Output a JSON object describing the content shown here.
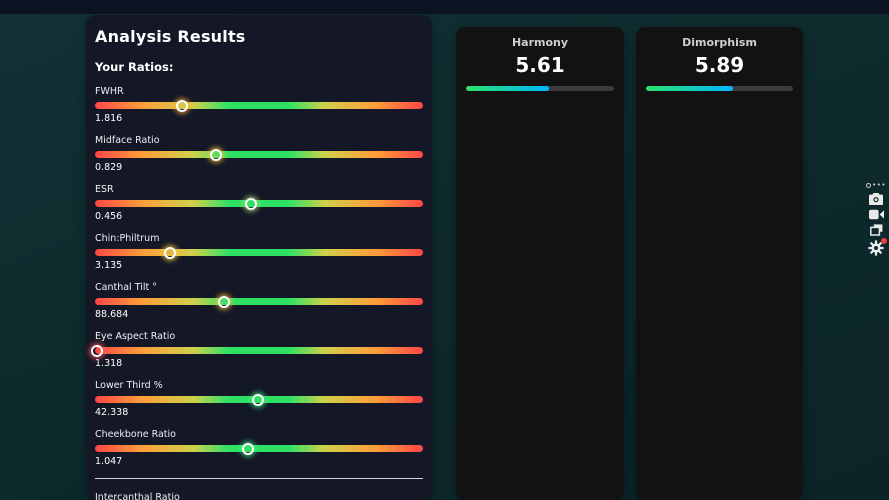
{
  "panel": {
    "title": "Analysis Results",
    "subtitle": "Your Ratios:",
    "ratios": [
      {
        "label": "FWHR",
        "value": "1.816",
        "position_pct": 26.4,
        "thumb_glow": "#ffaa33"
      },
      {
        "label": "Midface Ratio",
        "value": "0.829",
        "position_pct": 37.0,
        "thumb_glow": "#ffc233"
      },
      {
        "label": "ESR",
        "value": "0.456",
        "position_pct": 47.6,
        "thumb_glow": "#9fe86a"
      },
      {
        "label": "Chin:Philtrum",
        "value": "3.135",
        "position_pct": 22.9,
        "thumb_glow": "#ffd23d"
      },
      {
        "label": "Canthal Tilt °",
        "value": "88.684",
        "position_pct": 39.4,
        "thumb_glow": "#ffb83a"
      },
      {
        "label": "Eye Aspect Ratio",
        "value": "1.318",
        "position_pct": 0.5,
        "thumb_glow": "#ff5a5a"
      },
      {
        "label": "Lower Third %",
        "value": "42.338",
        "position_pct": 49.7,
        "thumb_glow": "#3ee87a"
      },
      {
        "label": "Cheekbone Ratio",
        "value": "1.047",
        "position_pct": 46.6,
        "thumb_glow": "#3ee87a"
      }
    ],
    "next_ratio_label": "Intercanthal Ratio"
  },
  "scores": [
    {
      "title": "Harmony",
      "value": "5.61",
      "fill_pct": 56.1
    },
    {
      "title": "Dimorphism",
      "value": "5.89",
      "fill_pct": 58.9
    }
  ],
  "toolbar": {
    "icons": [
      "handle-icon",
      "camera-icon",
      "video-camera-icon",
      "windows-icon",
      "gear-icon"
    ],
    "gear_badge_color": "#e8413d"
  },
  "colors": {
    "page_background": "#0e2a2c",
    "top_strip": "#0c1322",
    "panel_background": "#141726",
    "card_background": "#121213",
    "slider_gradient": [
      "#ff4646",
      "#ff9c3a",
      "#cfd04b",
      "#2ee164",
      "#2ee164",
      "#cfd04b",
      "#ff9c3a",
      "#ff4646"
    ],
    "score_bar_gradient": [
      "#2be26a",
      "#00b6ff"
    ],
    "score_bar_track": "#3b3b3b",
    "thumb_ring": "#ffffff"
  }
}
